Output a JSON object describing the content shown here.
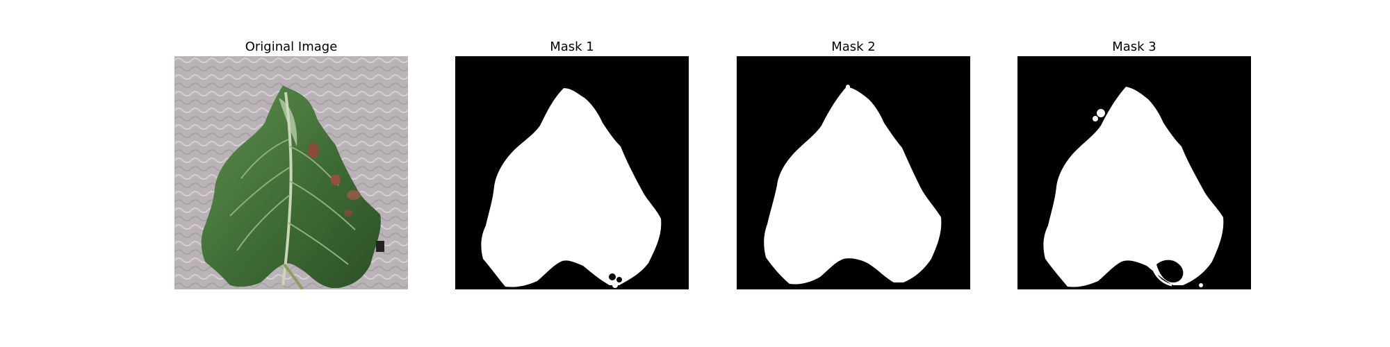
{
  "figure": {
    "panels": [
      {
        "title": "Original Image",
        "kind": "photo"
      },
      {
        "title": "Mask 1",
        "kind": "mask"
      },
      {
        "title": "Mask 2",
        "kind": "mask"
      },
      {
        "title": "Mask 3",
        "kind": "mask"
      }
    ],
    "colors": {
      "mask_background": "#000000",
      "mask_foreground": "#ffffff",
      "photo_background": "#b8b2b6",
      "leaf_dark": "#2f5a2b",
      "leaf_mid": "#4d7d3f",
      "leaf_light": "#7aa06a",
      "lesion": "#8b4a3c"
    }
  }
}
